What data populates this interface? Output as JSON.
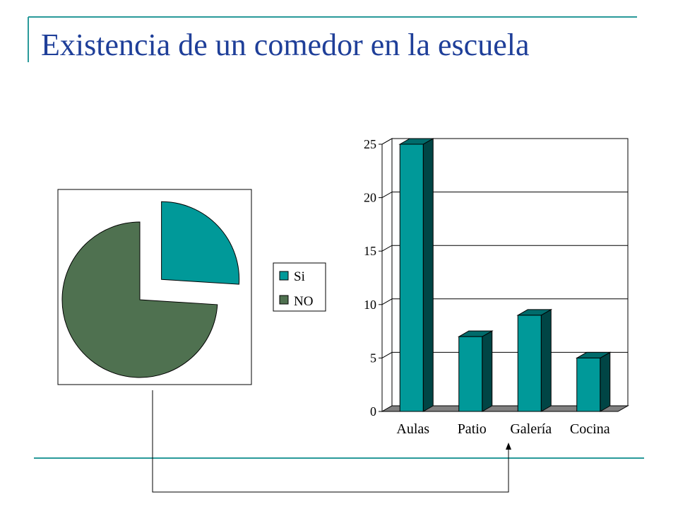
{
  "slide": {
    "title": "Existencia de un comedor en la escuela",
    "accent_color": "#2a9a9a",
    "title_color": "#1f3f99"
  },
  "chart_data": [
    {
      "type": "pie",
      "title": "",
      "labels": [
        "Si",
        "NO"
      ],
      "values": [
        26,
        74
      ],
      "exploded": true,
      "colors": [
        "#009999",
        "#4f7150"
      ],
      "legend": {
        "placement": "right",
        "entries": [
          "Si",
          "NO"
        ]
      }
    },
    {
      "type": "bar",
      "title": "",
      "categories": [
        "Aulas",
        "Patio",
        "Galería",
        "Cocina"
      ],
      "values": [
        25,
        7,
        9,
        5
      ],
      "ylim": [
        0,
        25
      ],
      "yticks": [
        "0",
        "5",
        "10",
        "15",
        "20",
        "25"
      ],
      "grid": true,
      "three_d": true,
      "color": "#009999"
    }
  ],
  "connector": {
    "from": "pie-chart",
    "to": "bar-category-galeria",
    "arrow": true
  }
}
